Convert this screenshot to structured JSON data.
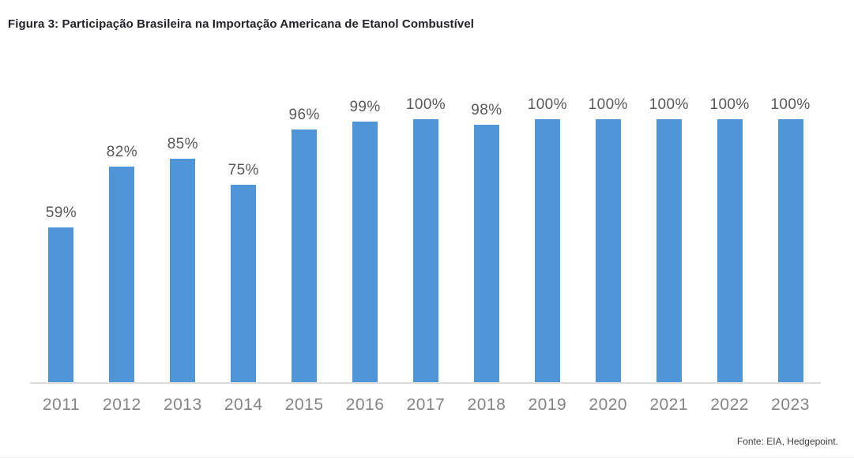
{
  "figure": {
    "title": "Figura 3: Participação Brasileira na Importação Americana de Etanol Combustível",
    "source": "Fonte: EIA, Hedgepoint."
  },
  "colors": {
    "bar": "#4f96d8",
    "baseline": "#dcdcdc",
    "title_text": "#222228",
    "label_text": "#595959",
    "axis_text": "#858585",
    "source_text": "#3d3d3d"
  },
  "chart_data": {
    "type": "bar",
    "title": "Figura 3: Participação Brasileira na Importação Americana de Etanol Combustível",
    "categories": [
      "2011",
      "2012",
      "2013",
      "2014",
      "2015",
      "2016",
      "2017",
      "2018",
      "2019",
      "2020",
      "2021",
      "2022",
      "2023"
    ],
    "values": [
      59,
      82,
      85,
      75,
      96,
      99,
      100,
      98,
      100,
      100,
      100,
      100,
      100
    ],
    "value_labels": [
      "59%",
      "82%",
      "85%",
      "75%",
      "96%",
      "99%",
      "100%",
      "98%",
      "100%",
      "100%",
      "100%",
      "100%",
      "100%"
    ],
    "xlabel": "",
    "ylabel": "",
    "ylim": [
      0,
      100
    ],
    "grid": false,
    "legend": "none",
    "data_labels": "above-bars",
    "source": "Fonte: EIA, Hedgepoint."
  }
}
